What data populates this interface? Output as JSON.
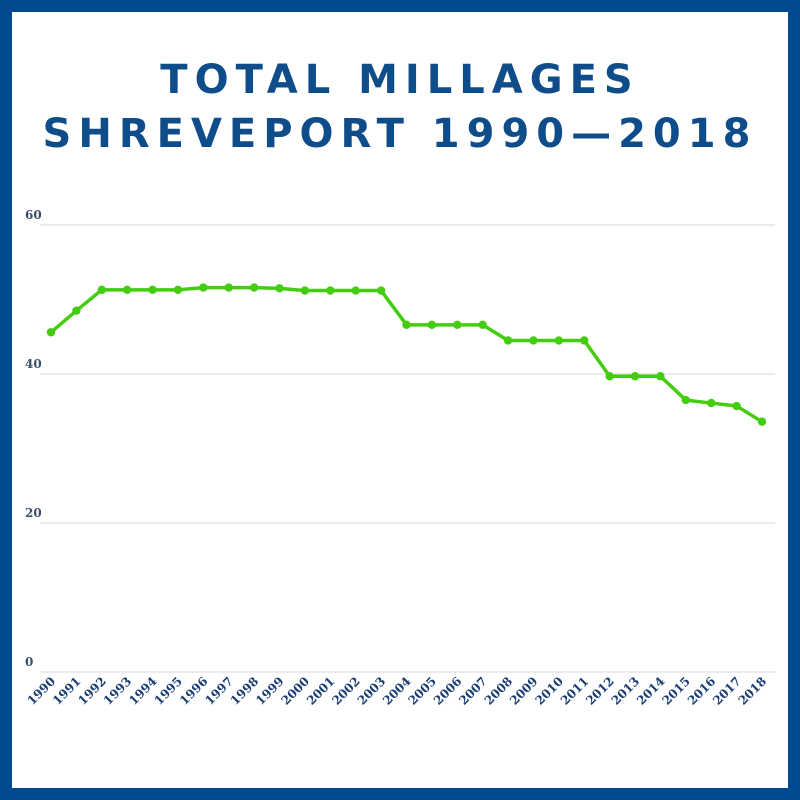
{
  "colors": {
    "border": "#004a8f",
    "title": "#0f4c8a",
    "line": "#44cc11",
    "grid": "#d9d9d9"
  },
  "chart_data": {
    "type": "line",
    "title_line1": "TOTAL MILLAGES",
    "title_line2": "SHREVEPORT 1990—2018",
    "xlabel": "",
    "ylabel": "",
    "ylim": [
      0,
      60
    ],
    "yticks": [
      "0",
      "20",
      "40",
      "60"
    ],
    "grid": true,
    "legend": "none",
    "categories": [
      "1990",
      "1991",
      "1992",
      "1993",
      "1994",
      "1995",
      "1996",
      "1997",
      "1998",
      "1999",
      "2000",
      "2001",
      "2002",
      "2003",
      "2004",
      "2005",
      "2006",
      "2007",
      "2008",
      "2009",
      "2010",
      "2011",
      "2012",
      "2013",
      "2014",
      "2015",
      "2016",
      "2017",
      "2018"
    ],
    "series": [
      {
        "values": [
          45.6,
          48.5,
          51.3,
          51.3,
          51.3,
          51.3,
          51.6,
          51.6,
          51.6,
          51.5,
          51.2,
          51.2,
          51.2,
          51.2,
          46.6,
          46.6,
          46.6,
          46.6,
          44.5,
          44.5,
          44.5,
          44.5,
          39.7,
          39.7,
          39.7,
          36.5,
          36.1,
          35.7,
          33.6
        ]
      }
    ]
  }
}
